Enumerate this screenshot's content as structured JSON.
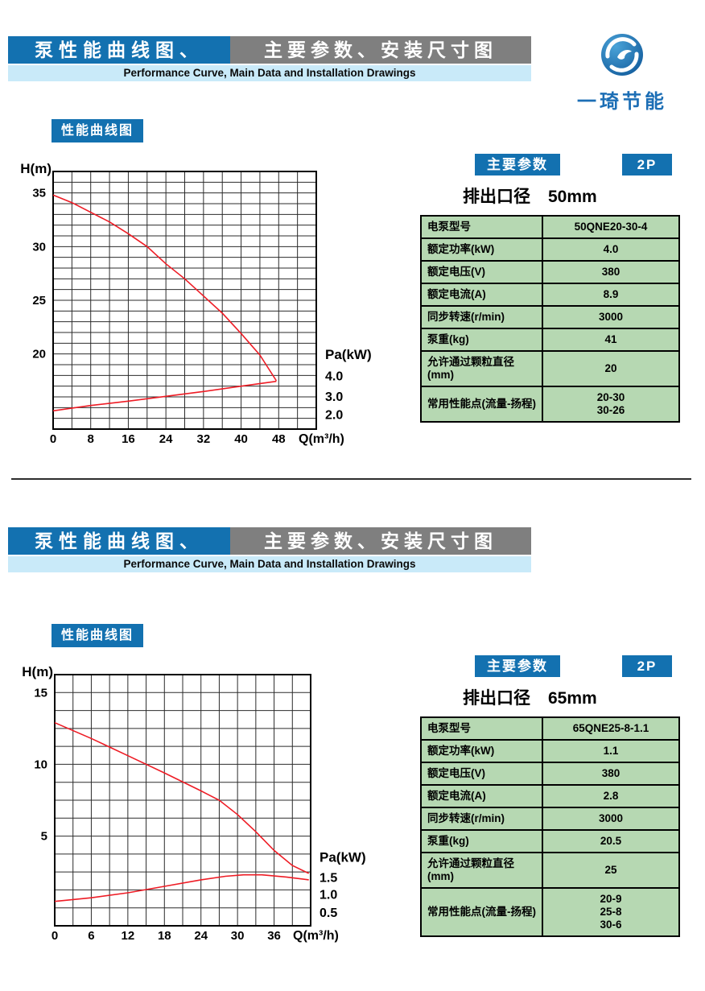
{
  "colors": {
    "header_blue": "#1371b0",
    "header_gray": "#7f7f7f",
    "strip_blue": "#c9eaf9",
    "table_green": "#b6d8b2",
    "curve_red": "#ee1c25",
    "logo_blue": "#1c6eb5",
    "grid_line": "#2b2b2b"
  },
  "logo": {
    "company": "一琦节能"
  },
  "sections": [
    {
      "banner": {
        "left": "泵性能曲线图、",
        "right": "主要参数、安装尺寸图",
        "subtitle": "Performance Curve, Main Data and Installation Drawings"
      },
      "curve_badge": "性能曲线图",
      "params": {
        "title_badge": "主要参数",
        "pole_badge": "2P",
        "bore_label": "排出口径",
        "bore_value": "50mm",
        "rows": [
          {
            "label": "电泵型号",
            "value": [
              "50QNE20-30-4"
            ]
          },
          {
            "label": "额定功率(kW)",
            "value": [
              "4.0"
            ]
          },
          {
            "label": "额定电压(V)",
            "value": [
              "380"
            ]
          },
          {
            "label": "额定电流(A)",
            "value": [
              "8.9"
            ]
          },
          {
            "label": "同步转速(r/min)",
            "value": [
              "3000"
            ]
          },
          {
            "label": "泵重(kg)",
            "value": [
              "41"
            ]
          },
          {
            "label": "允许通过颗粒直径(mm)",
            "value": [
              "20"
            ]
          },
          {
            "label": "常用性能点(流量-扬程)",
            "value": [
              "20-30",
              "30-26"
            ]
          }
        ]
      }
    },
    {
      "banner": {
        "left": "泵性能曲线图、",
        "right": "主要参数、安装尺寸图",
        "subtitle": "Performance Curve, Main Data and Installation Drawings"
      },
      "curve_badge": "性能曲线图",
      "params": {
        "title_badge": "主要参数",
        "pole_badge": "2P",
        "bore_label": "排出口径",
        "bore_value": "65mm",
        "rows": [
          {
            "label": "电泵型号",
            "value": [
              "65QNE25-8-1.1"
            ]
          },
          {
            "label": "额定功率(kW)",
            "value": [
              "1.1"
            ]
          },
          {
            "label": "额定电压(V)",
            "value": [
              "380"
            ]
          },
          {
            "label": "额定电流(A)",
            "value": [
              "2.8"
            ]
          },
          {
            "label": "同步转速(r/min)",
            "value": [
              "3000"
            ]
          },
          {
            "label": "泵重(kg)",
            "value": [
              "20.5"
            ]
          },
          {
            "label": "允许通过颗粒直径(mm)",
            "value": [
              "25"
            ]
          },
          {
            "label": "常用性能点(流量-扬程)",
            "value": [
              "20-9",
              "25-8",
              "30-6"
            ]
          }
        ]
      }
    }
  ],
  "chart_data": [
    {
      "type": "line",
      "title": "",
      "xlabel": "Q(m³/h)",
      "ylabel": "H(m)",
      "y2label": "Pa(kW)",
      "xlim": [
        0,
        56
      ],
      "ylim": [
        13,
        37
      ],
      "grid_x_step": 4,
      "grid_y_step": 1,
      "x_ticks": [
        0,
        8,
        16,
        24,
        32,
        40,
        48
      ],
      "y_ticks": [
        35,
        30,
        25,
        20
      ],
      "y2_ticks": [
        "4.0",
        "3.0",
        "2.0"
      ],
      "y2_tick_h": [
        17.9,
        16.0,
        14.3
      ],
      "y2_title_h": 19.9,
      "series": [
        {
          "name": "head-curve",
          "label": "H-Q",
          "points": [
            [
              0,
              34.8
            ],
            [
              4,
              34.1
            ],
            [
              8,
              33.2
            ],
            [
              12,
              32.3
            ],
            [
              16,
              31.2
            ],
            [
              20,
              30.0
            ],
            [
              24,
              28.4
            ],
            [
              28,
              27.0
            ],
            [
              32,
              25.4
            ],
            [
              36,
              23.8
            ],
            [
              40,
              21.9
            ],
            [
              44,
              19.9
            ],
            [
              47.5,
              17.5
            ]
          ]
        },
        {
          "name": "power-curve",
          "label": "Pa-Q",
          "points": [
            [
              0,
              14.7
            ],
            [
              8,
              15.2
            ],
            [
              16,
              15.6
            ],
            [
              24,
              16.05
            ],
            [
              32,
              16.5
            ],
            [
              40,
              17.0
            ],
            [
              47.5,
              17.45
            ]
          ]
        }
      ]
    },
    {
      "type": "line",
      "title": "",
      "xlabel": "Q(m³/h)",
      "ylabel": "H(m)",
      "y2label": "Pa(kW)",
      "xlim": [
        0,
        42
      ],
      "ylim": [
        -1.25,
        16.25
      ],
      "grid_x_step": 3,
      "grid_y_step": 1.25,
      "x_ticks": [
        0,
        6,
        12,
        18,
        24,
        30,
        36
      ],
      "y_ticks": [
        15,
        10,
        5
      ],
      "y2_ticks": [
        "1.5",
        "1.0",
        "0.5"
      ],
      "y2_tick_h": [
        2.1,
        0.9,
        -0.35
      ],
      "y2_title_h": 3.5,
      "series": [
        {
          "name": "head-curve",
          "label": "H-Q",
          "points": [
            [
              0,
              12.9
            ],
            [
              6,
              11.8
            ],
            [
              12,
              10.6
            ],
            [
              18,
              9.4
            ],
            [
              24,
              8.15
            ],
            [
              27,
              7.5
            ],
            [
              30,
              6.5
            ],
            [
              33,
              5.3
            ],
            [
              36,
              4.0
            ],
            [
              39,
              2.95
            ],
            [
              41.7,
              2.4
            ]
          ]
        },
        {
          "name": "power-curve",
          "label": "Pa-Q",
          "points": [
            [
              0,
              0.45
            ],
            [
              6,
              0.7
            ],
            [
              12,
              1.05
            ],
            [
              18,
              1.5
            ],
            [
              24,
              1.95
            ],
            [
              28,
              2.2
            ],
            [
              31,
              2.3
            ],
            [
              34,
              2.3
            ],
            [
              38,
              2.15
            ],
            [
              41.7,
              1.95
            ]
          ]
        }
      ]
    }
  ]
}
